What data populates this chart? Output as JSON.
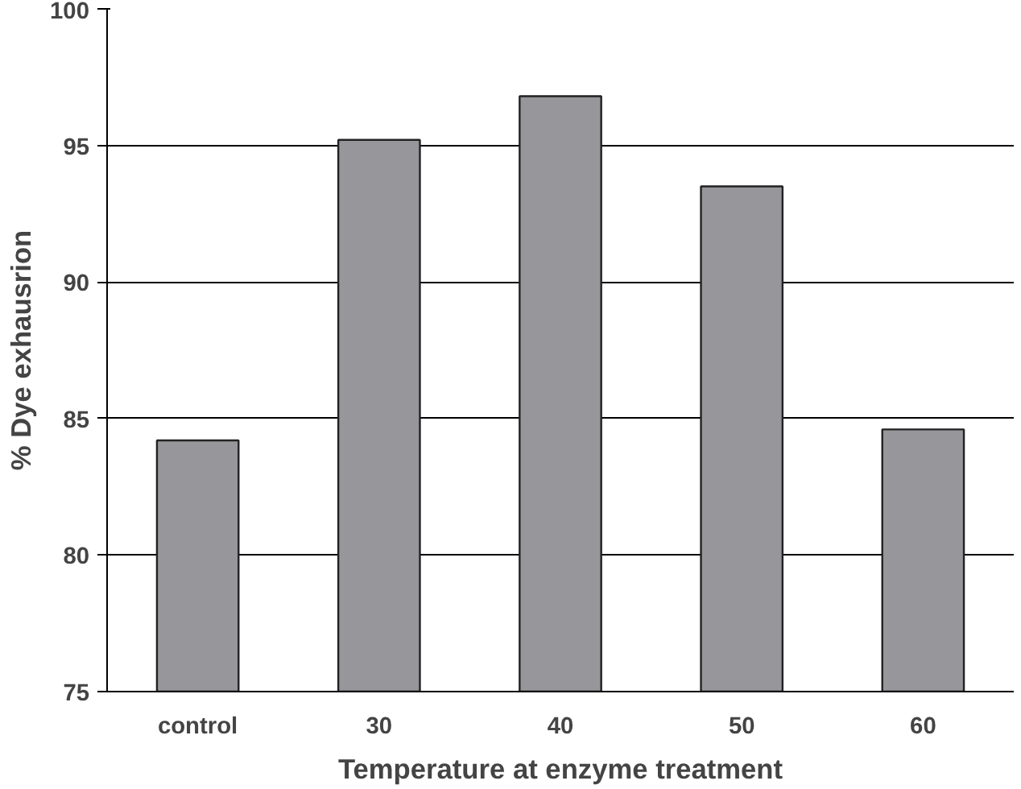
{
  "chart_data": {
    "type": "bar",
    "xlabel": "Temperature at enzyme treatment",
    "ylabel": "% Dye exhausrion",
    "categories": [
      "control",
      "30",
      "40",
      "50",
      "60"
    ],
    "values": [
      84.2,
      95.2,
      96.8,
      93.5,
      84.6
    ],
    "color": "#97979b",
    "ylim": [
      75,
      100
    ],
    "yticks": [
      75,
      80,
      85,
      90,
      95,
      100
    ],
    "grid": "y"
  }
}
